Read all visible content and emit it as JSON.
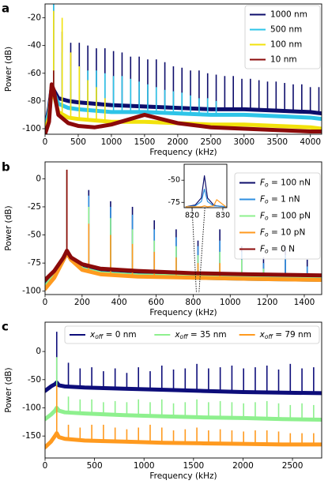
{
  "chart_data": [
    {
      "type": "line",
      "label": "a",
      "xlabel": "Frequency (kHz)",
      "ylabel": "Power (dB)",
      "xlim": [
        0,
        4170
      ],
      "ylim": [
        -104,
        -10
      ],
      "xticks": [
        0,
        500,
        1000,
        1500,
        2000,
        2500,
        3000,
        3500,
        4000
      ],
      "yticks": [
        -100,
        -80,
        -60,
        -40,
        -20
      ],
      "legend": "upper right",
      "x": [
        0,
        60,
        100,
        130,
        200,
        350,
        500,
        750,
        1000,
        1500,
        2000,
        2500,
        3000,
        3500,
        4000,
        4170
      ],
      "peak_x": [
        129,
        258,
        387,
        516,
        645,
        774,
        903,
        1032,
        1161,
        1290,
        1419,
        1548,
        1677,
        1806,
        1935,
        2064,
        2193,
        2322,
        2451,
        2580,
        2709,
        2838,
        2967,
        3096,
        3225,
        3354,
        3483,
        3612,
        3741,
        3870,
        3999,
        4128
      ],
      "series": [
        {
          "name": "1000 nm",
          "color": "#0d0d6b",
          "values": [
            -100,
            -85,
            -70,
            -72,
            -78,
            -80,
            -81,
            -82,
            -83,
            -84,
            -85,
            -86,
            -86,
            -87,
            -88,
            -89
          ],
          "peaks": [
            -5,
            -30,
            -38,
            -38,
            -40,
            -42,
            -42,
            -44,
            -45,
            -48,
            -48,
            -50,
            -50,
            -52,
            -55,
            -56,
            -58,
            -58,
            -60,
            -61,
            -62,
            -62,
            -64,
            -64,
            -65,
            -66,
            -66,
            -67,
            -68,
            -68,
            -70,
            -70
          ]
        },
        {
          "name": "500 nm",
          "color": "#2ec4e8",
          "values": [
            -100,
            -88,
            -72,
            -74,
            -82,
            -85,
            -86,
            -87,
            -88,
            -88,
            -89,
            -90,
            -90,
            -91,
            -92,
            -93
          ],
          "peaks": [
            -10,
            -45,
            -55,
            -55,
            -58,
            -58,
            -60,
            -62,
            -62,
            -64,
            -66,
            -68,
            -70,
            -72,
            -73,
            -74,
            -76,
            -78,
            -78,
            -80,
            null,
            null,
            null,
            null,
            null,
            null,
            null,
            null,
            null,
            null,
            null,
            null
          ]
        },
        {
          "name": "100 nm",
          "color": "#f2e20c",
          "values": [
            -102,
            -92,
            -70,
            -75,
            -88,
            -92,
            -93,
            -94,
            -95,
            -95,
            -96,
            -97,
            -97,
            -98,
            -99,
            -100
          ],
          "peaks": [
            -15,
            -20,
            -45,
            -55,
            -65,
            -70,
            -78,
            null,
            null,
            null,
            null,
            null,
            null,
            null,
            null,
            null,
            null,
            null,
            null,
            null,
            null,
            null,
            null,
            null,
            null,
            null,
            null,
            null,
            null,
            null,
            null,
            null
          ]
        },
        {
          "name": "10 nm",
          "color": "#8b0a0a",
          "values": [
            -104,
            -95,
            -68,
            -72,
            -90,
            -96,
            -98,
            -99,
            -97,
            -90,
            -96,
            -99,
            -100,
            -101,
            -102,
            -102
          ],
          "peaks": [
            -58,
            null,
            null,
            null,
            null,
            null,
            null,
            null,
            null,
            null,
            null,
            null,
            null,
            null,
            null,
            null,
            null,
            null,
            null,
            null,
            null,
            null,
            null,
            null,
            null,
            null,
            null,
            null,
            null,
            null,
            null,
            null
          ]
        }
      ]
    },
    {
      "type": "line",
      "label": "b",
      "xlabel": "Frequency (kHz)",
      "ylabel": "Power (dB)",
      "xlim": [
        0,
        1494
      ],
      "ylim": [
        -103,
        15
      ],
      "xticks": [
        0,
        200,
        400,
        600,
        800,
        1000,
        1200,
        1400
      ],
      "yticks": [
        -100,
        -75,
        -50,
        -25,
        0
      ],
      "legend": "upper right",
      "x": [
        0,
        50,
        100,
        118,
        140,
        200,
        300,
        500,
        800,
        1100,
        1494
      ],
      "peak_x": [
        118,
        236,
        354,
        472,
        590,
        708,
        826,
        944,
        1062,
        1180,
        1298,
        1416
      ],
      "series": [
        {
          "name": "Fo = 100 nN",
          "color": "#0d0d6b",
          "values": [
            -95,
            -85,
            -70,
            -65,
            -70,
            -78,
            -82,
            -84,
            -86,
            -87,
            -88
          ],
          "peaks": [
            8,
            -10,
            -20,
            -25,
            -37,
            -45,
            -55,
            -45,
            -60,
            -70,
            -60,
            -72
          ]
        },
        {
          "name": "Fo = 1 nN",
          "color": "#2e8fe0",
          "values": [
            -97,
            -87,
            -72,
            -66,
            -72,
            -80,
            -84,
            -86,
            -88,
            -89,
            -90
          ],
          "peaks": [
            8,
            -15,
            -25,
            -32,
            -45,
            -52,
            -60,
            -55,
            -65,
            -75,
            -68,
            -78
          ]
        },
        {
          "name": "Fo = 100 pN",
          "color": "#8ef08e",
          "values": [
            -96,
            -86,
            -71,
            -66,
            -71,
            -80,
            -84,
            -86,
            -87,
            -88,
            -89
          ],
          "peaks": [
            8,
            -25,
            -35,
            -45,
            -55,
            -60,
            -68,
            -65,
            -72,
            -80,
            null,
            null
          ]
        },
        {
          "name": "Fo = 10 pN",
          "color": "#ff9a1f",
          "values": [
            -98,
            -88,
            -72,
            -66,
            -72,
            -81,
            -85,
            -87,
            -88,
            -89,
            -90
          ],
          "peaks": [
            8,
            -40,
            -50,
            -58,
            -65,
            -70,
            -75,
            -75,
            null,
            null,
            null,
            null
          ]
        },
        {
          "name": "Fo = 0 N",
          "color": "#8b0a0a",
          "values": [
            -90,
            -82,
            -70,
            -64,
            -70,
            -76,
            -80,
            -82,
            -84,
            -85,
            -86
          ],
          "peaks": [
            8,
            null,
            null,
            null,
            null,
            null,
            null,
            null,
            null,
            null,
            null,
            null
          ]
        }
      ]
    },
    {
      "type": "line",
      "inset": true,
      "xlim": [
        817.4,
        831.3
      ],
      "ylim": [
        -81,
        -32
      ],
      "xticks": [
        820,
        830
      ],
      "yticks": [
        -50,
        -75
      ],
      "x": [
        818,
        821,
        823,
        824,
        825,
        827,
        828,
        831
      ],
      "series": [
        {
          "color": "#0d0d6b",
          "values": [
            -80,
            -78,
            -70,
            -45,
            -70,
            -78,
            -79,
            -80
          ]
        },
        {
          "color": "#2e8fe0",
          "values": [
            -80,
            -79,
            -74,
            -60,
            -74,
            -79,
            -79,
            -80
          ]
        },
        {
          "color": "#ff9a1f",
          "values": [
            -80,
            -80,
            -80,
            -79,
            -80,
            -79,
            -72,
            -80
          ]
        }
      ]
    },
    {
      "type": "line",
      "label": "c",
      "xlabel": "Frequency (kHz)",
      "ylabel": "Power (dB)",
      "xlim": [
        0,
        2795
      ],
      "ylim": [
        -189,
        52
      ],
      "xticks": [
        0,
        500,
        1000,
        1500,
        2000,
        2500
      ],
      "yticks": [
        -150,
        -100,
        -50,
        0
      ],
      "legend": "upper center",
      "legend_ncol": 3,
      "x": [
        0,
        60,
        100,
        118,
        140,
        200,
        400,
        800,
        1200,
        1600,
        2000,
        2400,
        2795
      ],
      "peak_x": [
        118,
        236,
        354,
        472,
        590,
        708,
        826,
        944,
        1062,
        1180,
        1298,
        1416,
        1534,
        1652,
        1770,
        1888,
        2006,
        2124,
        2242,
        2360,
        2478,
        2596,
        2714
      ],
      "series": [
        {
          "name": "xoff = 0 nm",
          "color": "#0d0d7a",
          "values": [
            -70,
            -62,
            -58,
            -55,
            -60,
            -62,
            -64,
            -66,
            -68,
            -70,
            -72,
            -73,
            -74
          ],
          "peaks": [
            35,
            -20,
            -30,
            -28,
            -35,
            -30,
            -38,
            -28,
            -35,
            -25,
            -32,
            -30,
            -22,
            -30,
            -28,
            -25,
            -30,
            -28,
            -25,
            -32,
            -22,
            -30,
            -28
          ]
        },
        {
          "name": "xoff = 35 nm",
          "color": "#8ef08e",
          "values": [
            -120,
            -112,
            -105,
            -100,
            -105,
            -108,
            -110,
            -113,
            -115,
            -117,
            -118,
            -120,
            -121
          ],
          "peaks": [
            -10,
            -80,
            -85,
            -85,
            -90,
            -88,
            -90,
            -85,
            -90,
            -85,
            -92,
            -90,
            -85,
            -90,
            -88,
            -90,
            -92,
            -90,
            -88,
            -92,
            -95,
            -92,
            -95
          ]
        },
        {
          "name": "xoff = 79 nm",
          "color": "#ff9a1f",
          "values": [
            -170,
            -160,
            -150,
            -145,
            -152,
            -155,
            -158,
            -160,
            -162,
            -163,
            -164,
            -165,
            -165
          ],
          "peaks": [
            -60,
            -130,
            -135,
            -130,
            -130,
            -135,
            -138,
            -135,
            -130,
            -135,
            -140,
            -138,
            -135,
            -140,
            -138,
            -140,
            -142,
            -140,
            -140,
            -142,
            -145,
            -145,
            -145
          ]
        }
      ]
    }
  ]
}
